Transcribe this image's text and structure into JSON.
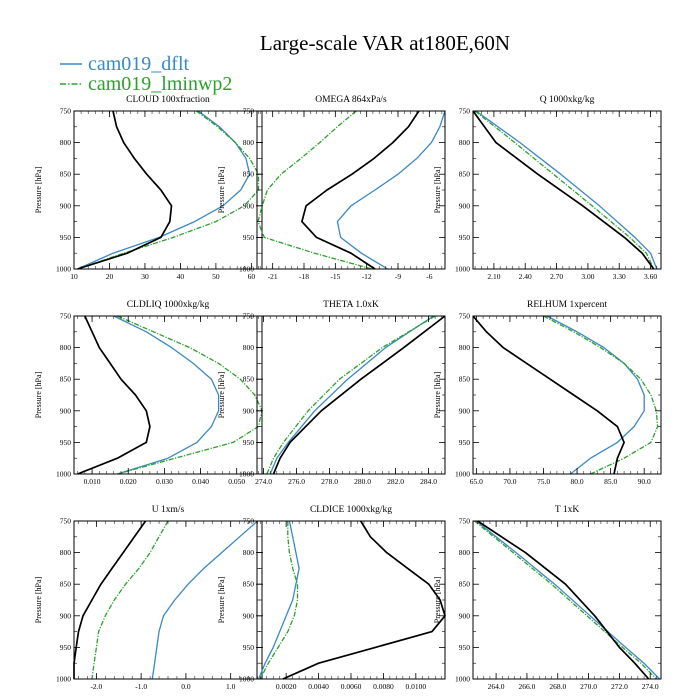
{
  "figure": {
    "title": "Large-scale VAR at180E,60N",
    "series": [
      {
        "name": "cam019_dflt",
        "color": "#3b88c4",
        "dashed": false
      },
      {
        "name": "cam019_lminwp2",
        "color": "#2ca02c",
        "dashed": true
      },
      {
        "name": "",
        "color": "#000000",
        "dashed": false
      }
    ],
    "legend_position": "top-left"
  },
  "chart_data": [
    {
      "type": "line",
      "title": "CLOUD 100xfraction",
      "ylabel": "Pressure [hPa]",
      "xlim": [
        10,
        63
      ],
      "ylim": [
        750,
        1000
      ],
      "xticks": [
        "10",
        "20",
        "30",
        "40",
        "50",
        "60"
      ],
      "yticks": [
        "750",
        "800",
        "850",
        "900",
        "950",
        "1000"
      ],
      "y": [
        750,
        775,
        800,
        825,
        850,
        875,
        900,
        925,
        950,
        975,
        1000
      ],
      "lines": [
        {
          "x": [
            45,
            51,
            55.5,
            58.5,
            59.5,
            57,
            52,
            44,
            34,
            21,
            11
          ]
        },
        {
          "x": [
            44.5,
            50.5,
            55.5,
            59.5,
            62,
            62,
            58,
            50,
            38,
            24,
            11
          ]
        },
        {
          "x": [
            21,
            22,
            24,
            27,
            30.5,
            34.5,
            37.5,
            37,
            34.5,
            25,
            11
          ]
        }
      ]
    },
    {
      "type": "line",
      "title": "OMEGA 864xPa/s",
      "ylabel": "Pressure [hPa]",
      "xlim": [
        -22.5,
        -4.5
      ],
      "ylim": [
        750,
        1000
      ],
      "xticks": [
        "-21",
        "-18",
        "-15",
        "-12",
        "-9",
        "-6"
      ],
      "yticks": [
        "750",
        "800",
        "850",
        "900",
        "950",
        "1000"
      ],
      "y": [
        750,
        775,
        800,
        825,
        850,
        875,
        900,
        925,
        950,
        975,
        1000
      ],
      "lines": [
        {
          "x": [
            -4.5,
            -5,
            -5.8,
            -7.2,
            -9,
            -11.2,
            -13.5,
            -14.8,
            -14.5,
            -12.5,
            -10
          ]
        },
        {
          "x": [
            -13,
            -14.8,
            -16.5,
            -18.3,
            -20.2,
            -21.5,
            -22,
            -22.4,
            -21.8,
            -17,
            -11.5
          ]
        },
        {
          "x": [
            -7,
            -8,
            -9.5,
            -11.3,
            -13.4,
            -15.8,
            -17.8,
            -18.2,
            -16.8,
            -13.5,
            -11.2
          ]
        }
      ]
    },
    {
      "type": "line",
      "title": "Q 1000xkg/kg",
      "ylabel": "Pressure [hPa]",
      "xlim": [
        1.9,
        3.7
      ],
      "ylim": [
        750,
        1000
      ],
      "xticks": [
        "2.10",
        "2.40",
        "2.70",
        "3.00",
        "3.30",
        "3.60"
      ],
      "yticks": [
        "750",
        "800",
        "850",
        "900",
        "950",
        "1000"
      ],
      "y": [
        750,
        800,
        850,
        900,
        950,
        975,
        1000
      ],
      "lines": [
        {
          "x": [
            1.93,
            2.35,
            2.74,
            3.11,
            3.45,
            3.6,
            3.66
          ]
        },
        {
          "x": [
            1.92,
            2.3,
            2.67,
            3.04,
            3.4,
            3.56,
            3.63
          ]
        },
        {
          "x": [
            1.9,
            2.12,
            2.52,
            2.95,
            3.35,
            3.52,
            3.63
          ]
        }
      ]
    },
    {
      "type": "line",
      "title": "CLDLIQ 1000xkg/kg",
      "ylabel": "Pressure [hPa]",
      "xlim": [
        0.005,
        0.057
      ],
      "ylim": [
        750,
        1000
      ],
      "xticks": [
        "0.010",
        "0.020",
        "0.030",
        "0.040",
        "0.050"
      ],
      "yticks": [
        "750",
        "800",
        "850",
        "900",
        "950",
        "1000"
      ],
      "y": [
        750,
        775,
        800,
        825,
        850,
        875,
        900,
        925,
        950,
        975,
        1000
      ],
      "lines": [
        {
          "x": [
            0.016,
            0.025,
            0.032,
            0.038,
            0.043,
            0.045,
            0.045,
            0.043,
            0.039,
            0.031,
            0.017
          ]
        },
        {
          "x": [
            0.017,
            0.027,
            0.037,
            0.045,
            0.051,
            0.055,
            0.057,
            0.056,
            0.049,
            0.033,
            0.017
          ]
        },
        {
          "x": [
            0.008,
            0.01,
            0.012,
            0.015,
            0.018,
            0.022,
            0.025,
            0.026,
            0.025,
            0.017,
            0.006
          ]
        }
      ]
    },
    {
      "type": "line",
      "title": "THETA 1.0xK",
      "ylabel": "Pressure [hPa]",
      "xlim": [
        273.6,
        285.0
      ],
      "ylim": [
        750,
        1000
      ],
      "xticks": [
        "274.0",
        "276.0",
        "278.0",
        "280.0",
        "282.0",
        "284.0"
      ],
      "yticks": [
        "750",
        "800",
        "850",
        "900",
        "950",
        "1000"
      ],
      "y": [
        750,
        800,
        850,
        900,
        950,
        975,
        1000
      ],
      "lines": [
        {
          "x": [
            284.3,
            281.4,
            279.1,
            277.1,
            275.5,
            274.8,
            274.4
          ]
        },
        {
          "x": [
            284.4,
            281.2,
            278.6,
            276.7,
            275.2,
            274.6,
            274.2
          ]
        },
        {
          "x": [
            285.0,
            282.5,
            279.9,
            277.5,
            275.6,
            275.0,
            274.6
          ]
        }
      ]
    },
    {
      "type": "line",
      "title": "RELHUM 1xpercent",
      "ylabel": "Pressure [hPa]",
      "xlim": [
        64.5,
        92.5
      ],
      "ylim": [
        750,
        1000
      ],
      "xticks": [
        "65.0",
        "70.0",
        "75.0",
        "80.0",
        "85.0",
        "90.0"
      ],
      "yticks": [
        "750",
        "800",
        "850",
        "900",
        "950",
        "1000"
      ],
      "y": [
        750,
        775,
        800,
        825,
        850,
        875,
        900,
        925,
        950,
        975,
        1000
      ],
      "lines": [
        {
          "x": [
            75.5,
            80,
            84,
            87,
            89,
            90,
            90,
            88.5,
            86,
            82,
            79
          ]
        },
        {
          "x": [
            75,
            79.5,
            83.5,
            87,
            89.5,
            91,
            91.8,
            92,
            91,
            87,
            82
          ]
        },
        {
          "x": [
            64.5,
            66.5,
            69,
            72.5,
            76,
            79.5,
            83,
            86,
            87,
            86,
            85.5
          ]
        }
      ]
    },
    {
      "type": "line",
      "title": "U 1xm/s",
      "ylabel": "Pressure [hPa]",
      "xlim": [
        -2.5,
        1.7
      ],
      "ylim": [
        750,
        1000
      ],
      "xticks": [
        "-2.0",
        "-1.0",
        "0.0",
        "1.0"
      ],
      "yticks": [
        "750",
        "800",
        "850",
        "900",
        "950",
        "1000"
      ],
      "y": [
        750,
        775,
        800,
        825,
        850,
        875,
        900,
        925,
        950,
        975,
        1000
      ],
      "lines": [
        {
          "x": [
            1.6,
            1.2,
            0.8,
            0.4,
            0.05,
            -0.25,
            -0.5,
            -0.6,
            -0.65,
            -0.7,
            -0.75
          ]
        },
        {
          "x": [
            -0.4,
            -0.6,
            -0.8,
            -1.05,
            -1.35,
            -1.6,
            -1.8,
            -1.95,
            -2.0,
            -2.05,
            -2.1
          ]
        },
        {
          "x": [
            -0.9,
            -1.15,
            -1.4,
            -1.65,
            -1.9,
            -2.1,
            -2.3,
            -2.4,
            -2.45,
            -2.5,
            -2.5
          ]
        }
      ]
    },
    {
      "type": "line",
      "title": "CLDICE 1000xkg/kg",
      "ylabel": "Pressure [hPa]",
      "xlim": [
        0.0002,
        0.0118
      ],
      "ylim": [
        750,
        1000
      ],
      "xticks": [
        "0.0020",
        "0.0040",
        "0.0060",
        "0.0080",
        "0.0100"
      ],
      "yticks": [
        "750",
        "800",
        "850",
        "900",
        "950",
        "1000"
      ],
      "y": [
        750,
        775,
        800,
        825,
        850,
        875,
        900,
        925,
        950,
        975,
        1000
      ],
      "lines": [
        {
          "x": [
            0.0022,
            0.0024,
            0.0026,
            0.0028,
            0.0026,
            0.0024,
            0.002,
            0.0016,
            0.0012,
            0.0007,
            0.0003
          ]
        },
        {
          "x": [
            0.0021,
            0.0021,
            0.0022,
            0.0024,
            0.0027,
            0.0027,
            0.0025,
            0.0021,
            0.0015,
            0.0009,
            0.0004
          ]
        },
        {
          "x": [
            0.0066,
            0.0072,
            0.0082,
            0.0095,
            0.0108,
            0.0115,
            0.0118,
            0.011,
            0.0075,
            0.004,
            0.0018
          ]
        }
      ]
    },
    {
      "type": "line",
      "title": "T 1xK",
      "ylabel": "Pressure [hPa]",
      "xlim": [
        262.5,
        274.7
      ],
      "ylim": [
        750,
        1000
      ],
      "xticks": [
        "264.0",
        "266.0",
        "268.0",
        "270.0",
        "272.0",
        "274.0"
      ],
      "yticks": [
        "750",
        "800",
        "850",
        "900",
        "950",
        "1000"
      ],
      "y": [
        750,
        800,
        850,
        900,
        950,
        975,
        1000
      ],
      "lines": [
        {
          "x": [
            262.7,
            265.3,
            267.8,
            270.1,
            272.4,
            273.6,
            274.6
          ]
        },
        {
          "x": [
            262.6,
            265.1,
            267.6,
            269.9,
            272.2,
            273.4,
            274.4
          ]
        },
        {
          "x": [
            262.8,
            265.9,
            268.5,
            270.4,
            272.0,
            273.0,
            273.9
          ]
        }
      ]
    }
  ]
}
